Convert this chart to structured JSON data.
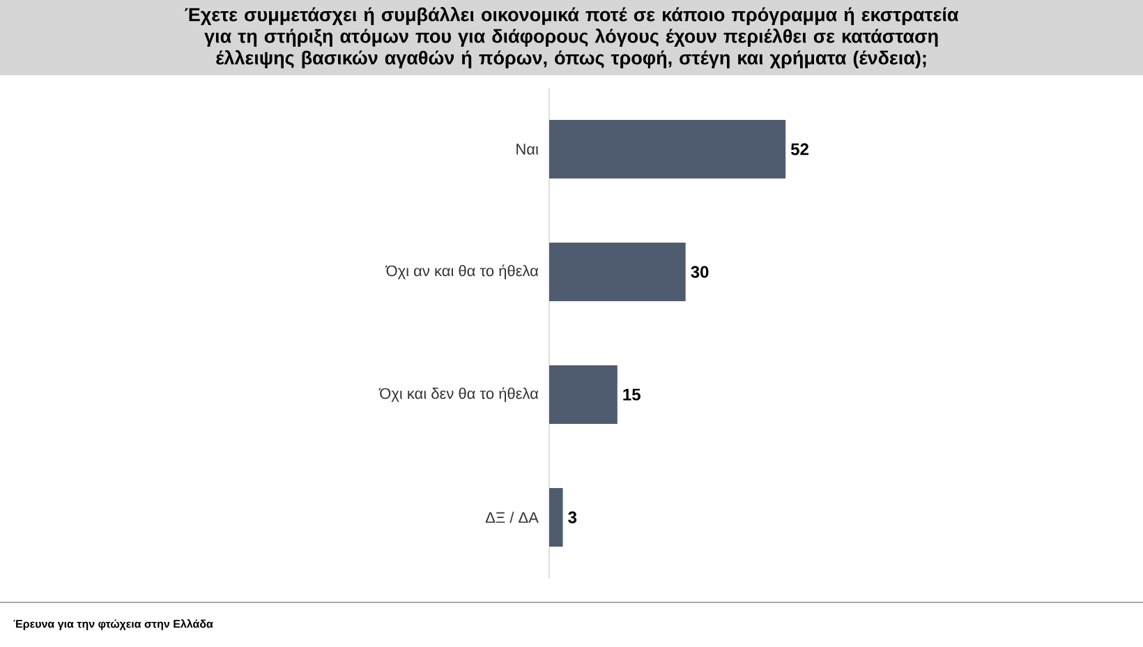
{
  "chart_data": {
    "type": "bar",
    "orientation": "horizontal",
    "title": "Έχετε συμμετάσχει ή συμβάλλει οικονομικά ποτέ σε κάποιο πρόγραμμα ή εκστρατεία για τη στήριξη ατόμων που για διάφορους λόγους έχουν περιέλθει σε κατάσταση έλλειψης βασικών αγαθών ή πόρων, όπως τροφή, στέγη και χρήματα (ένδεια);",
    "categories": [
      "Ναι",
      "Όχι αν και θα το ήθελα",
      "Όχι και δεν θα το ήθελα",
      "ΔΞ / ΔΑ"
    ],
    "values": [
      52,
      30,
      15,
      3
    ],
    "color": "#4f5b6f",
    "data_labels": true,
    "annotations": [
      "Έρευνα για την φτώχεια  στην Ελλάδα"
    ]
  }
}
